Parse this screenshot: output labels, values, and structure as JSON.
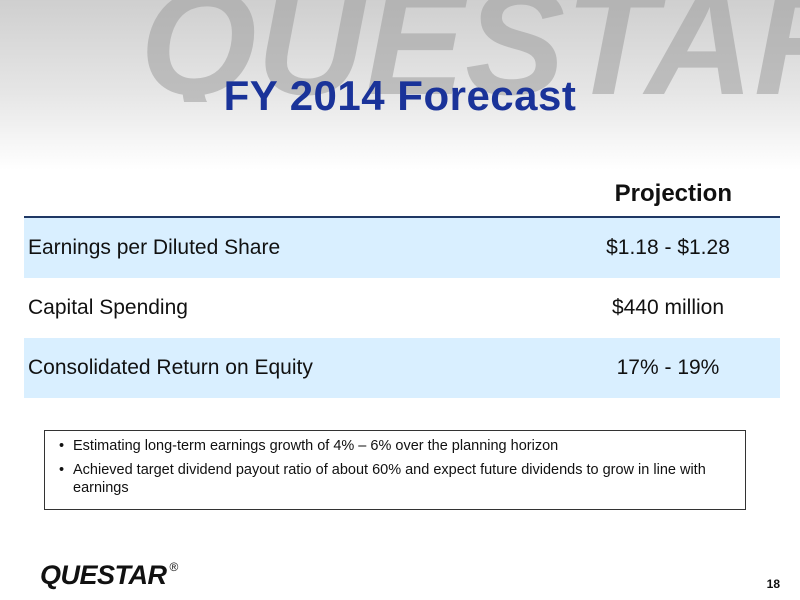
{
  "brand": {
    "watermark_text": "QUESTAR",
    "logo_text": "QUESTAR",
    "registered_mark": "®"
  },
  "slide": {
    "title": "FY 2014 Forecast",
    "page_number": "18"
  },
  "table": {
    "column_header": "Projection",
    "rows": [
      {
        "label": "Earnings per Diluted Share",
        "value": "$1.18 - $1.28"
      },
      {
        "label": "Capital Spending",
        "value": "$440 million"
      },
      {
        "label": "Consolidated Return on Equity",
        "value": "17% - 19%"
      }
    ]
  },
  "notes": {
    "bullets": [
      "Estimating long-term earnings growth of 4% – 6% over the planning horizon",
      "Achieved target dividend payout ratio of about 60% and expect future dividends to grow in line with earnings"
    ]
  },
  "colors": {
    "title": "#1a3399",
    "row_shade": "#d9efff",
    "header_rule": "#1f3864"
  }
}
